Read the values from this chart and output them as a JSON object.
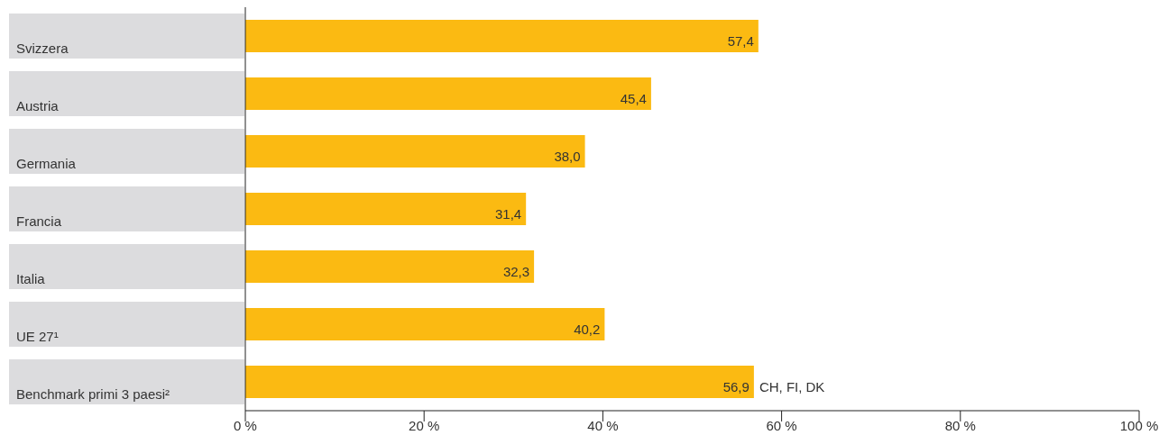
{
  "chart_data": {
    "type": "bar",
    "orientation": "horizontal",
    "categories": [
      "Svizzera",
      "Austria",
      "Germania",
      "Francia",
      "Italia",
      "UE 27¹",
      "Benchmark primi 3 paesi²"
    ],
    "values": [
      57.4,
      45.4,
      38.0,
      31.4,
      32.3,
      40.2,
      56.9
    ],
    "value_labels": [
      "57,4",
      "45,4",
      "38,0",
      "31,4",
      "32,3",
      "40,2",
      "56,9"
    ],
    "color": "#fbba12",
    "xlim": [
      0,
      100
    ],
    "xticks": [
      {
        "value": 0,
        "label": "0 %"
      },
      {
        "value": 20,
        "label": "20 %"
      },
      {
        "value": 40,
        "label": "40 %"
      },
      {
        "value": 60,
        "label": "60 %"
      },
      {
        "value": 80,
        "label": "80 %"
      },
      {
        "value": 100,
        "label": "100 %"
      }
    ],
    "annotations": [
      {
        "text": "CH, FI, DK",
        "x": 56.9,
        "y": "Benchmark primi 3 paesi²"
      }
    ],
    "grid": false,
    "legend": false
  }
}
